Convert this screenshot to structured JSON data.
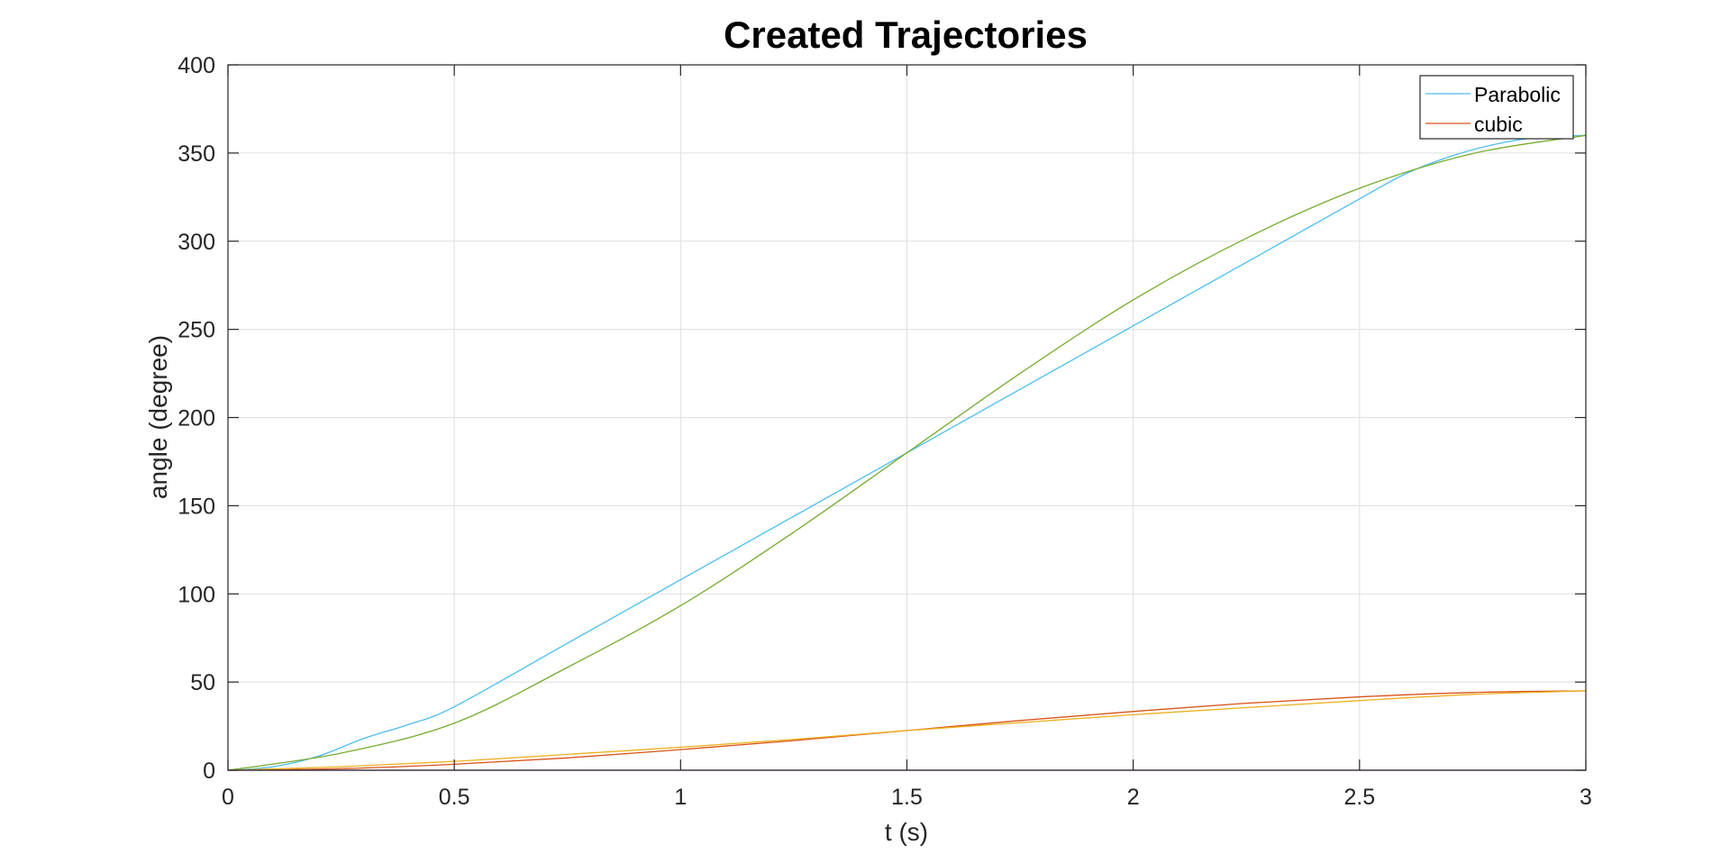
{
  "chart_data": {
    "type": "line",
    "title": "Created Trajectories",
    "xlabel": "t (s)",
    "ylabel": "angle (degree)",
    "xlim": [
      0,
      3
    ],
    "ylim": [
      0,
      400
    ],
    "xticks": [
      0,
      0.5,
      1,
      1.5,
      2,
      2.5,
      3
    ],
    "xtick_labels": [
      "0",
      "0.5",
      "1",
      "1.5",
      "2",
      "2.5",
      "3"
    ],
    "yticks": [
      0,
      50,
      100,
      150,
      200,
      250,
      300,
      350,
      400
    ],
    "ytick_labels": [
      "0",
      "50",
      "100",
      "150",
      "200",
      "250",
      "300",
      "350",
      "400"
    ],
    "grid": true,
    "legend_position": "top-right",
    "series": [
      {
        "name": "Parabolic",
        "color": "#4DBEEE",
        "x": [
          0,
          0.1,
          0.2,
          0.3,
          0.4,
          0.5,
          0.75,
          1.0,
          1.25,
          1.5,
          1.75,
          2.0,
          2.25,
          2.5,
          2.6,
          2.7,
          2.8,
          2.9,
          3.0
        ],
        "y": [
          0,
          2,
          8,
          18,
          26,
          36,
          72,
          108,
          144,
          180,
          216,
          252,
          288,
          324,
          338,
          348,
          355,
          359,
          360
        ]
      },
      {
        "name": "cubic",
        "color": "#D95319",
        "x": [
          0,
          0.25,
          0.5,
          0.75,
          1.0,
          1.25,
          1.5,
          1.75,
          2.0,
          2.25,
          2.5,
          2.75,
          3.0
        ],
        "y": [
          0,
          0.9,
          3.4,
          7.0,
          11.7,
          16.8,
          22.5,
          28.2,
          33.3,
          38.0,
          41.6,
          44.1,
          45
        ]
      },
      {
        "color": "#77AC30",
        "x": [
          0,
          0.25,
          0.5,
          0.75,
          1.0,
          1.25,
          1.5,
          1.75,
          2.0,
          2.25,
          2.5,
          2.75,
          3.0
        ],
        "y": [
          0,
          9.7,
          26.7,
          58.3,
          93.3,
          135.0,
          180.0,
          225.0,
          266.7,
          301.7,
          330.0,
          349.7,
          360
        ]
      },
      {
        "color": "#EDB120",
        "x": [
          0,
          0.25,
          0.5,
          0.75,
          1.0,
          1.25,
          1.5,
          1.75,
          2.0,
          2.25,
          2.5,
          2.75,
          3.0
        ],
        "y": [
          0,
          2.0,
          5.0,
          9.0,
          13.0,
          17.5,
          22.5,
          27.0,
          31.5,
          35.5,
          39.5,
          43.0,
          45
        ]
      },
      {
        "color": "#7E2F8E",
        "x": [
          0,
          3
        ],
        "y": [
          0,
          0
        ]
      }
    ]
  }
}
